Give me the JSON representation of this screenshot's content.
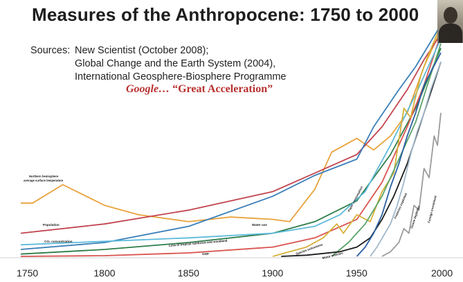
{
  "title": "Measures of the Anthropocene:  1750 to 2000",
  "sources": {
    "label": "Sources:",
    "line1": "New Scientist (October 2008);",
    "line2": "Global Change and the Earth System (2004),",
    "line3": "International Geosphere-Biosphere Programme"
  },
  "google_note": {
    "prefix": "Google…",
    "quote": "“Great Acceleration”"
  },
  "chart_data": {
    "type": "line",
    "title": "",
    "xlabel": "",
    "ylabel": "",
    "xlim": [
      1750,
      2000
    ],
    "x_ticks": [
      1750,
      1800,
      1850,
      1900,
      1950,
      2000
    ],
    "y_unit": "relative change (no scale shown)",
    "ylim": [
      0,
      100
    ],
    "grid": false,
    "legend": "none (lines labelled directly)",
    "series": [
      {
        "name": "Northern hemisphere average surface temperature",
        "color": "#e8a33c",
        "points": [
          [
            1750,
            23
          ],
          [
            1757,
            23
          ],
          [
            1775,
            31
          ],
          [
            1800,
            22
          ],
          [
            1820,
            18
          ],
          [
            1850,
            15
          ],
          [
            1875,
            17
          ],
          [
            1900,
            16
          ],
          [
            1910,
            15
          ],
          [
            1925,
            29
          ],
          [
            1935,
            45
          ],
          [
            1950,
            51
          ],
          [
            1960,
            46
          ],
          [
            1970,
            52
          ],
          [
            1980,
            62
          ],
          [
            1990,
            82
          ],
          [
            2000,
            98
          ]
        ]
      },
      {
        "name": "Population",
        "color": "#c2454f",
        "points": [
          [
            1750,
            10
          ],
          [
            1800,
            14
          ],
          [
            1850,
            20
          ],
          [
            1900,
            28
          ],
          [
            1925,
            36
          ],
          [
            1950,
            44
          ],
          [
            1965,
            56
          ],
          [
            1980,
            72
          ],
          [
            1990,
            85
          ],
          [
            2000,
            96
          ]
        ]
      },
      {
        "name": "CO2 concentration",
        "color": "#3a7fb8",
        "points": [
          [
            1750,
            3
          ],
          [
            1800,
            6
          ],
          [
            1850,
            13
          ],
          [
            1900,
            26
          ],
          [
            1925,
            35
          ],
          [
            1950,
            42
          ],
          [
            1960,
            56
          ],
          [
            1975,
            72
          ],
          [
            1985,
            82
          ],
          [
            2000,
            100
          ]
        ]
      },
      {
        "name": "Loss of tropical rainforest and woodland",
        "color": "#2e7d4a",
        "points": [
          [
            1750,
            1
          ],
          [
            1800,
            3
          ],
          [
            1850,
            6
          ],
          [
            1900,
            10
          ],
          [
            1925,
            15
          ],
          [
            1950,
            24
          ],
          [
            1970,
            44
          ],
          [
            1985,
            64
          ],
          [
            2000,
            90
          ]
        ]
      },
      {
        "name": "GDP",
        "color": "#d9534f",
        "points": [
          [
            1750,
            0
          ],
          [
            1800,
            0.3
          ],
          [
            1850,
            1.5
          ],
          [
            1900,
            4
          ],
          [
            1925,
            8
          ],
          [
            1950,
            16
          ],
          [
            1965,
            32
          ],
          [
            1980,
            56
          ],
          [
            1990,
            74
          ],
          [
            2000,
            96
          ]
        ]
      },
      {
        "name": "Water use",
        "color": "#5dbadb",
        "points": [
          [
            1750,
            5
          ],
          [
            1850,
            8
          ],
          [
            1900,
            10
          ],
          [
            1925,
            13
          ],
          [
            1940,
            18
          ],
          [
            1955,
            28
          ],
          [
            1970,
            48
          ],
          [
            1985,
            70
          ],
          [
            2000,
            94
          ]
        ]
      },
      {
        "name": "Species extinctions",
        "color": "#d6b13a",
        "points": [
          [
            1900,
            0
          ],
          [
            1910,
            2
          ],
          [
            1920,
            4
          ],
          [
            1930,
            8
          ],
          [
            1938,
            14
          ],
          [
            1942,
            10
          ],
          [
            1950,
            18
          ],
          [
            1958,
            15
          ],
          [
            1965,
            28
          ],
          [
            1972,
            36
          ],
          [
            1978,
            64
          ],
          [
            1982,
            60
          ],
          [
            1988,
            78
          ],
          [
            1992,
            86
          ],
          [
            2000,
            100
          ]
        ]
      },
      {
        "name": "Paper consumption",
        "color": "#5ba36a",
        "points": [
          [
            1935,
            0
          ],
          [
            1945,
            6
          ],
          [
            1955,
            14
          ],
          [
            1965,
            26
          ],
          [
            1975,
            42
          ],
          [
            1985,
            58
          ],
          [
            1992,
            74
          ],
          [
            2000,
            92
          ]
        ]
      },
      {
        "name": "Motor vehicles",
        "color": "#1b1b1b",
        "points": [
          [
            1905,
            0
          ],
          [
            1920,
            0.5
          ],
          [
            1940,
            2
          ],
          [
            1950,
            4
          ],
          [
            1958,
            8
          ],
          [
            1965,
            16
          ],
          [
            1972,
            26
          ],
          [
            1980,
            40
          ],
          [
            1990,
            62
          ],
          [
            2000,
            84
          ]
        ]
      },
      {
        "name": "Fisheries exploited",
        "color": "#2a5fa3",
        "points": [
          [
            1950,
            0
          ],
          [
            1955,
            4
          ],
          [
            1960,
            10
          ],
          [
            1965,
            18
          ],
          [
            1970,
            30
          ],
          [
            1975,
            40
          ],
          [
            1980,
            52
          ],
          [
            1985,
            62
          ],
          [
            1990,
            74
          ],
          [
            2000,
            88
          ]
        ]
      },
      {
        "name": "Ozone depletion",
        "color": "#9fb7c9",
        "points": [
          [
            1958,
            0
          ],
          [
            1962,
            4
          ],
          [
            1966,
            9
          ],
          [
            1970,
            14
          ],
          [
            1974,
            22
          ],
          [
            1978,
            32
          ],
          [
            1982,
            44
          ],
          [
            1986,
            54
          ],
          [
            1990,
            62
          ],
          [
            1994,
            72
          ],
          [
            2000,
            84
          ]
        ]
      },
      {
        "name": "Foreign investment",
        "color": "#9b9b9b",
        "points": [
          [
            1965,
            0
          ],
          [
            1970,
            2
          ],
          [
            1975,
            6
          ],
          [
            1978,
            12
          ],
          [
            1981,
            10
          ],
          [
            1984,
            22
          ],
          [
            1987,
            20
          ],
          [
            1990,
            38
          ],
          [
            1993,
            34
          ],
          [
            1996,
            52
          ],
          [
            1998,
            48
          ],
          [
            2000,
            62
          ]
        ]
      }
    ],
    "annotations": [
      {
        "text": "Northern hemisphere",
        "series": 0
      },
      {
        "text": "average surface temperature",
        "series": 0
      },
      {
        "text": "Population",
        "series": 1
      },
      {
        "text": "CO₂ concentration",
        "series": 2
      },
      {
        "text": "Loss of tropical rainforest and woodland",
        "series": 3
      },
      {
        "text": "GDP",
        "series": 4
      },
      {
        "text": "Water use",
        "series": 5
      },
      {
        "text": "Species extinctions",
        "series": 6
      },
      {
        "text": "Paper consumption",
        "series": 7
      },
      {
        "text": "Motor vehicles",
        "series": 8
      },
      {
        "text": "Fisheries exploited",
        "series": 9
      },
      {
        "text": "Ozone depletion",
        "series": 10
      },
      {
        "text": "Foreign investment",
        "series": 11
      }
    ]
  }
}
